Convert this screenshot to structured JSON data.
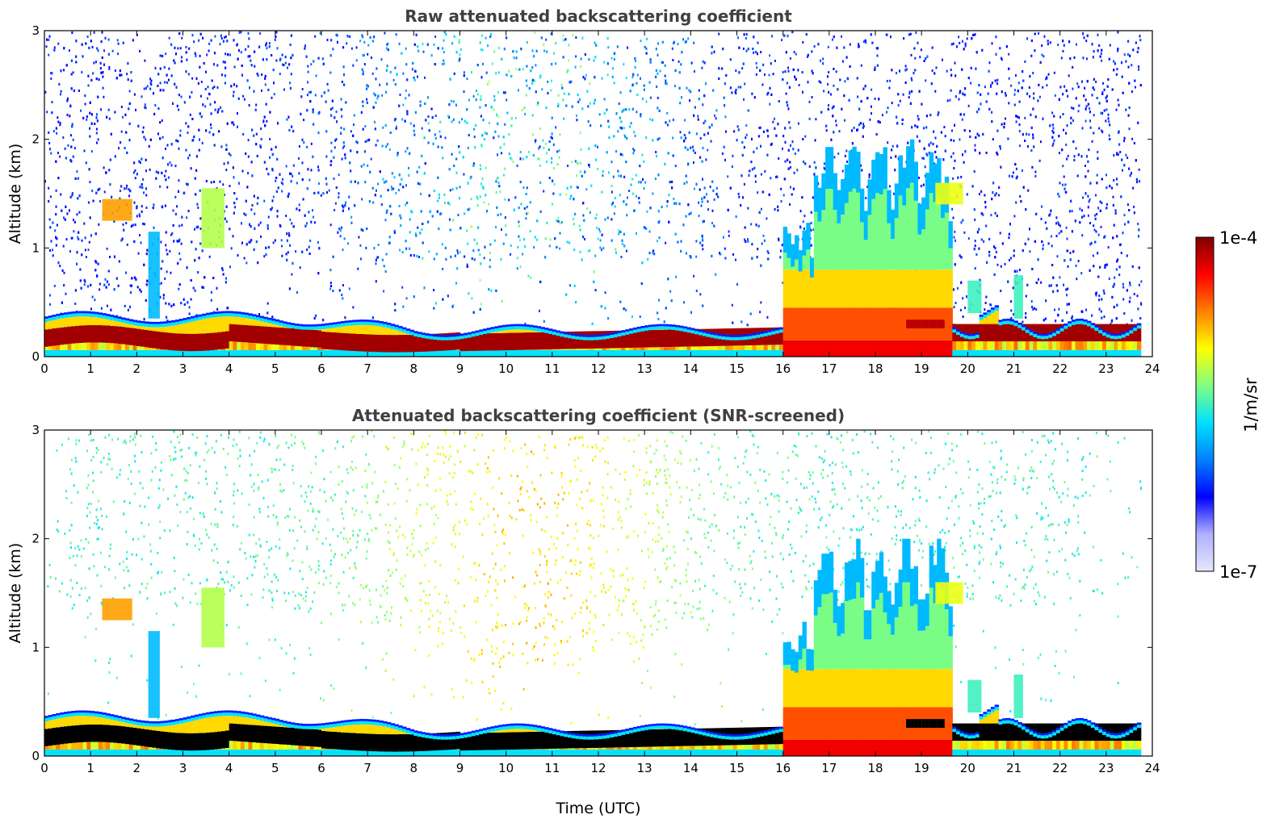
{
  "chart_data": [
    {
      "type": "heatmap",
      "title": "Raw attenuated backscattering coefficient",
      "ylabel": "Altitude (km)",
      "xlabel": "",
      "xlim": [
        0,
        24
      ],
      "ylim": [
        0,
        3
      ],
      "xticks": [
        "0",
        "1",
        "2",
        "3",
        "4",
        "5",
        "6",
        "7",
        "8",
        "9",
        "10",
        "11",
        "12",
        "13",
        "14",
        "15",
        "16",
        "17",
        "18",
        "19",
        "20",
        "21",
        "22",
        "23",
        "24"
      ],
      "yticks": [
        "0",
        "1",
        "2",
        "3"
      ],
      "screened": false,
      "features": [
        {
          "name": "boundary-layer-aerosol",
          "time": [
            0,
            16
          ],
          "altitude_top": 0.38,
          "peak_altitude": 0.2
        },
        {
          "name": "clouds-afternoon",
          "time": [
            16,
            19.6
          ],
          "altitude_top": 2.0
        },
        {
          "name": "aerosol-evening",
          "time": [
            19.6,
            23.75
          ],
          "altitude_top": 0.5
        },
        {
          "name": "cloud-morning-1",
          "time": [
            1.2,
            2.0
          ],
          "altitude": 1.35
        },
        {
          "name": "cloud-morning-2",
          "time": [
            3.4,
            3.9
          ],
          "altitude": 1.3
        }
      ]
    },
    {
      "type": "heatmap",
      "title": "Attenuated backscattering coefficient (SNR-screened)",
      "ylabel": "Altitude (km)",
      "xlabel": "Time (UTC)",
      "xlim": [
        0,
        24
      ],
      "ylim": [
        0,
        3
      ],
      "xticks": [
        "0",
        "1",
        "2",
        "3",
        "4",
        "5",
        "6",
        "7",
        "8",
        "9",
        "10",
        "11",
        "12",
        "13",
        "14",
        "15",
        "16",
        "17",
        "18",
        "19",
        "20",
        "21",
        "22",
        "23",
        "24"
      ],
      "yticks": [
        "0",
        "1",
        "2",
        "3"
      ],
      "screened": true
    }
  ],
  "colorbar": {
    "label": "1/m/sr",
    "max_label": "1e-4",
    "min_label": "1e-7",
    "range": [
      1e-07,
      0.0001
    ],
    "colors": [
      "#e6e6fa",
      "#b0b0ff",
      "#0000ff",
      "#0080ff",
      "#00e0ff",
      "#80ff80",
      "#ffff00",
      "#ff8000",
      "#ff0000",
      "#800000"
    ]
  },
  "colors": {
    "saturated": "#000000",
    "title_gray": "#404040"
  }
}
